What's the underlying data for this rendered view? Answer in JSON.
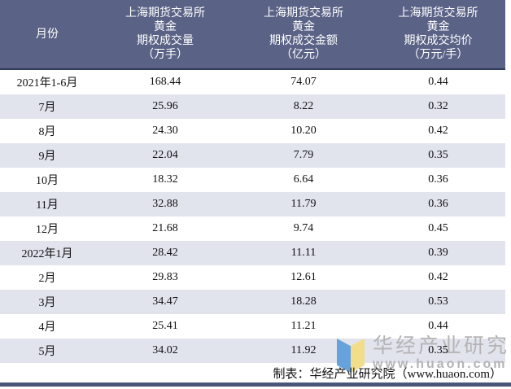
{
  "table": {
    "month_col_header": "月份",
    "value_col_headers": [
      {
        "lines": [
          "上海期货交易所",
          "黄金",
          "期权成交量",
          "（万手）"
        ]
      },
      {
        "lines": [
          "上海期货交易所",
          "黄金",
          "期权成交金额",
          "（亿元）"
        ]
      },
      {
        "lines": [
          "上海期货交易所",
          "黄金",
          "期权成交均价",
          "（万元/手）"
        ]
      }
    ],
    "rows": [
      [
        "2021年1-6月",
        "168.44",
        "74.07",
        "0.44"
      ],
      [
        "7月",
        "25.96",
        "8.22",
        "0.32"
      ],
      [
        "8月",
        "24.30",
        "10.20",
        "0.42"
      ],
      [
        "9月",
        "22.04",
        "7.79",
        "0.35"
      ],
      [
        "10月",
        "18.32",
        "6.64",
        "0.36"
      ],
      [
        "11月",
        "32.88",
        "11.79",
        "0.36"
      ],
      [
        "12月",
        "21.68",
        "9.74",
        "0.45"
      ],
      [
        "2022年1月",
        "28.42",
        "11.11",
        "0.39"
      ],
      [
        "2月",
        "29.83",
        "12.61",
        "0.42"
      ],
      [
        "3月",
        "34.47",
        "18.28",
        "0.53"
      ],
      [
        "4月",
        "25.41",
        "11.21",
        "0.44"
      ],
      [
        "5月",
        "34.02",
        "11.92",
        "0.35"
      ]
    ]
  },
  "footer": {
    "credit": "制表：华经产业研究院（www.huaon.com）"
  },
  "watermark": {
    "org": "华经产业研究院",
    "site": "www.huaon.com"
  },
  "colors": {
    "header_bg": "#5a6286",
    "header_text": "#ffffff",
    "stripe": "#e1e3ed",
    "bottom_bar": "#4c5678",
    "watermark_text": "#b4b4b4",
    "logo_blue": "#66a3dd",
    "logo_yellow": "#f2dd8a"
  },
  "chart_data": {
    "type": "table",
    "columns": [
      "月份",
      "上海期货交易所黄金期权成交量（万手）",
      "上海期货交易所黄金期权成交金额（亿元）",
      "上海期货交易所黄金期权成交均价（万元/手）"
    ],
    "rows": [
      {
        "month": "2021年1-6月",
        "volume_wan_shou": 168.44,
        "amount_yi_yuan": 74.07,
        "avg_price_wan_yuan_per_shou": 0.44
      },
      {
        "month": "7月",
        "volume_wan_shou": 25.96,
        "amount_yi_yuan": 8.22,
        "avg_price_wan_yuan_per_shou": 0.32
      },
      {
        "month": "8月",
        "volume_wan_shou": 24.3,
        "amount_yi_yuan": 10.2,
        "avg_price_wan_yuan_per_shou": 0.42
      },
      {
        "month": "9月",
        "volume_wan_shou": 22.04,
        "amount_yi_yuan": 7.79,
        "avg_price_wan_yuan_per_shou": 0.35
      },
      {
        "month": "10月",
        "volume_wan_shou": 18.32,
        "amount_yi_yuan": 6.64,
        "avg_price_wan_yuan_per_shou": 0.36
      },
      {
        "month": "11月",
        "volume_wan_shou": 32.88,
        "amount_yi_yuan": 11.79,
        "avg_price_wan_yuan_per_shou": 0.36
      },
      {
        "month": "12月",
        "volume_wan_shou": 21.68,
        "amount_yi_yuan": 9.74,
        "avg_price_wan_yuan_per_shou": 0.45
      },
      {
        "month": "2022年1月",
        "volume_wan_shou": 28.42,
        "amount_yi_yuan": 11.11,
        "avg_price_wan_yuan_per_shou": 0.39
      },
      {
        "month": "2月",
        "volume_wan_shou": 29.83,
        "amount_yi_yuan": 12.61,
        "avg_price_wan_yuan_per_shou": 0.42
      },
      {
        "month": "3月",
        "volume_wan_shou": 34.47,
        "amount_yi_yuan": 18.28,
        "avg_price_wan_yuan_per_shou": 0.53
      },
      {
        "month": "4月",
        "volume_wan_shou": 25.41,
        "amount_yi_yuan": 11.21,
        "avg_price_wan_yuan_per_shou": 0.44
      },
      {
        "month": "5月",
        "volume_wan_shou": 34.02,
        "amount_yi_yuan": 11.92,
        "avg_price_wan_yuan_per_shou": 0.35
      }
    ],
    "legend_position": "none",
    "grid": false,
    "source_note": "制表：华经产业研究院（www.huaon.com）"
  }
}
